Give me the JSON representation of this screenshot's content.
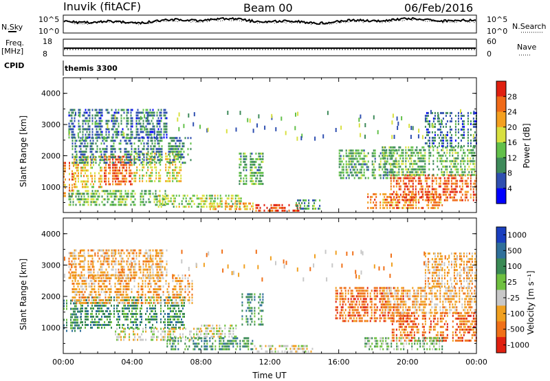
{
  "header": {
    "station": "Inuvik (fitACF)",
    "beam": "Beam 00",
    "date": "06/Feb/2016"
  },
  "noise_panel": {
    "left_label": "N.Sky",
    "right_label": "N.Search",
    "left_ticks": [
      "10^5",
      "10^0"
    ],
    "right_ticks": [
      "10^5",
      "10^0"
    ]
  },
  "freq_panel": {
    "left_label_1": "Freq.",
    "left_label_2": "[MHz]",
    "right_label": "Nave",
    "left_ticks": [
      "18",
      "8"
    ],
    "right_ticks": [
      "60",
      "0"
    ],
    "freq_mhz": 11.0,
    "nave": 24
  },
  "cpid": {
    "label": "CPID",
    "program": "themis 3300"
  },
  "chart_data": [
    {
      "type": "heatmap",
      "name": "power",
      "xlabel": "",
      "ylabel": "Slant Range [km]",
      "ylim": [
        180,
        4500
      ],
      "yticks": [
        "1000",
        "2000",
        "3000",
        "4000"
      ],
      "ytick_values": [
        1000,
        2000,
        3000,
        4000
      ],
      "xlim": [
        0,
        24
      ],
      "colorbar": {
        "label": "Power [dB]",
        "range": [
          0,
          32
        ],
        "ticks": [
          "4",
          "8",
          "12",
          "16",
          "20",
          "24",
          "28"
        ],
        "tick_values": [
          4,
          8,
          12,
          16,
          20,
          24,
          28
        ],
        "colors": [
          "#0000ff",
          "#2f4fb0",
          "#3e8a5a",
          "#62c04a",
          "#d8e040",
          "#f4a020",
          "#f06a18",
          "#e02010"
        ]
      },
      "regions": [
        {
          "t0": 0.0,
          "t1": 0.6,
          "r0": 700,
          "r1": 1800,
          "level": 24
        },
        {
          "t0": 0.6,
          "t1": 2.2,
          "r0": 1000,
          "r1": 2000,
          "level": 20
        },
        {
          "t0": 2.2,
          "t1": 4.0,
          "r0": 1100,
          "r1": 2000,
          "level": 26
        },
        {
          "t0": 4.0,
          "t1": 6.8,
          "r0": 1200,
          "r1": 2100,
          "level": 18
        },
        {
          "t0": 0.5,
          "t1": 7.5,
          "r0": 1800,
          "r1": 2600,
          "level": 9
        },
        {
          "t0": 0.3,
          "t1": 6.0,
          "r0": 400,
          "r1": 900,
          "level": 14
        },
        {
          "t0": 5.5,
          "t1": 10.5,
          "r0": 350,
          "r1": 750,
          "level": 16
        },
        {
          "t0": 8.5,
          "t1": 11.0,
          "r0": 250,
          "r1": 500,
          "level": 22
        },
        {
          "t0": 10.2,
          "t1": 11.6,
          "r0": 1100,
          "r1": 2100,
          "level": 12
        },
        {
          "t0": 11.0,
          "t1": 14.0,
          "r0": 200,
          "r1": 450,
          "level": 28
        },
        {
          "t0": 13.5,
          "t1": 15.0,
          "r0": 300,
          "r1": 600,
          "level": 12
        },
        {
          "t0": 16.0,
          "t1": 19.5,
          "r0": 1300,
          "r1": 2200,
          "level": 12
        },
        {
          "t0": 17.5,
          "t1": 22.0,
          "r0": 300,
          "r1": 800,
          "level": 24
        },
        {
          "t0": 19.0,
          "t1": 24.0,
          "r0": 600,
          "r1": 1400,
          "level": 27
        },
        {
          "t0": 18.5,
          "t1": 24.0,
          "r0": 1400,
          "r1": 2300,
          "level": 13
        },
        {
          "t0": 21.0,
          "t1": 24.0,
          "r0": 2300,
          "r1": 3400,
          "level": 8
        },
        {
          "t0": 0.3,
          "t1": 6.0,
          "r0": 2600,
          "r1": 3500,
          "level": 8
        }
      ]
    },
    {
      "type": "heatmap",
      "name": "velocity",
      "xlabel": "Time UT",
      "ylabel": "Slant Range [km]",
      "ylim": [
        180,
        4500
      ],
      "yticks": [
        "1000",
        "2000",
        "3000",
        "4000"
      ],
      "ytick_values": [
        1000,
        2000,
        3000,
        4000
      ],
      "xlim": [
        0,
        24
      ],
      "xticks": [
        "00:00",
        "04:00",
        "08:00",
        "12:00",
        "16:00",
        "20:00",
        "00:00"
      ],
      "xtick_values": [
        0,
        4,
        8,
        12,
        16,
        20,
        24
      ],
      "colorbar": {
        "label": "Velocity [m s⁻¹]",
        "ticks": [
          "1000",
          "500",
          "100",
          "25",
          "-25",
          "-100",
          "-500",
          "-1000"
        ],
        "colors": [
          "#1a3fbf",
          "#2f6f9a",
          "#3a8a55",
          "#6fc040",
          "#c8c8c8",
          "#f0a020",
          "#f07018",
          "#e02010"
        ]
      },
      "regions": [
        {
          "t0": 0.0,
          "t1": 1.0,
          "r0": 900,
          "r1": 1900,
          "level": 2
        },
        {
          "t0": 1.0,
          "t1": 7.0,
          "r0": 1000,
          "r1": 2000,
          "level": 2
        },
        {
          "t0": 0.5,
          "t1": 7.5,
          "r0": 1800,
          "r1": 2700,
          "level": 5
        },
        {
          "t0": 3.0,
          "t1": 8.0,
          "r0": 600,
          "r1": 1000,
          "level": 4
        },
        {
          "t0": 6.0,
          "t1": 11.0,
          "r0": 300,
          "r1": 700,
          "level": 2
        },
        {
          "t0": 8.0,
          "t1": 10.0,
          "r0": 700,
          "r1": 1100,
          "level": 4
        },
        {
          "t0": 10.2,
          "t1": 11.6,
          "r0": 1100,
          "r1": 2100,
          "level": 2
        },
        {
          "t0": 11.0,
          "t1": 14.5,
          "r0": 200,
          "r1": 450,
          "level": 4
        },
        {
          "t0": 15.8,
          "t1": 20.0,
          "r0": 1200,
          "r1": 2300,
          "level": 6
        },
        {
          "t0": 19.0,
          "t1": 24.0,
          "r0": 600,
          "r1": 1500,
          "level": 6
        },
        {
          "t0": 17.5,
          "t1": 22.0,
          "r0": 300,
          "r1": 700,
          "level": 3
        },
        {
          "t0": 18.5,
          "t1": 24.0,
          "r0": 1500,
          "r1": 2300,
          "level": 5
        },
        {
          "t0": 21.0,
          "t1": 24.0,
          "r0": 2300,
          "r1": 3400,
          "level": 5
        },
        {
          "t0": 0.3,
          "t1": 6.0,
          "r0": 2600,
          "r1": 3500,
          "level": 5
        }
      ]
    }
  ]
}
